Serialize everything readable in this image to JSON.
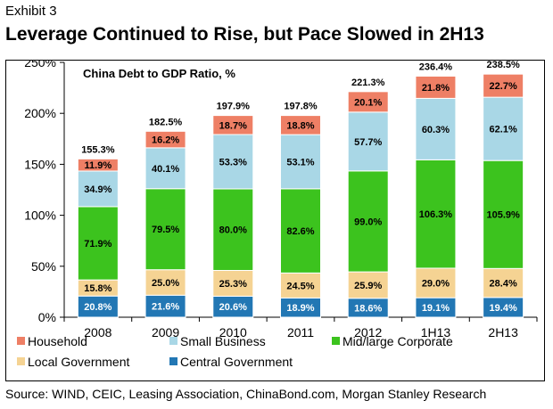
{
  "header": {
    "exhibit": "Exhibit 3",
    "title": "Leverage Continued to Rise, but Pace Slowed in 2H13"
  },
  "source": "Source: WIND, CEIC, Leasing Association, ChinaBond.com, Morgan Stanley Research",
  "chart_data": {
    "type": "bar",
    "stacked": true,
    "title": "China Debt to GDP Ratio, %",
    "xlabel": "",
    "ylabel": "",
    "ylim": [
      0,
      250
    ],
    "yticks": [
      0,
      50,
      100,
      150,
      200,
      250
    ],
    "ytick_labels": [
      "0%",
      "50%",
      "100%",
      "150%",
      "200%",
      "250%"
    ],
    "grid": false,
    "legend_position": "bottom",
    "categories": [
      "2008",
      "2009",
      "2010",
      "2011",
      "2012",
      "1H13",
      "2H13"
    ],
    "series": [
      {
        "name": "Central Government",
        "color": "#2277b4",
        "label_color": "#ffffff",
        "values": [
          20.8,
          21.6,
          20.6,
          18.9,
          18.6,
          19.1,
          19.4
        ],
        "labels": [
          "20.8%",
          "21.6%",
          "20.6%",
          "18.9%",
          "18.6%",
          "19.1%",
          "19.4%"
        ]
      },
      {
        "name": "Local Government",
        "color": "#f5d393",
        "label_color": "#000000",
        "values": [
          15.8,
          25.0,
          25.3,
          24.5,
          25.9,
          29.0,
          28.4
        ],
        "labels": [
          "15.8%",
          "25.0%",
          "25.3%",
          "24.5%",
          "25.9%",
          "29.0%",
          "28.4%"
        ]
      },
      {
        "name": "Mid/large Corporate",
        "color": "#3cc31e",
        "label_color": "#000000",
        "values": [
          71.9,
          79.5,
          80.0,
          82.6,
          99.0,
          106.3,
          105.9
        ],
        "labels": [
          "71.9%",
          "79.5%",
          "80.0%",
          "82.6%",
          "99.0%",
          "106.3%",
          "105.9%"
        ]
      },
      {
        "name": "Small Business",
        "color": "#a9d7e6",
        "label_color": "#000000",
        "values": [
          34.9,
          40.1,
          53.3,
          53.1,
          57.7,
          60.3,
          62.1
        ],
        "labels": [
          "34.9%",
          "40.1%",
          "53.3%",
          "53.1%",
          "57.7%",
          "60.3%",
          "62.1%"
        ]
      },
      {
        "name": "Household",
        "color": "#ee7f65",
        "label_color": "#000000",
        "values": [
          11.9,
          16.2,
          18.7,
          18.8,
          20.1,
          21.8,
          22.7
        ],
        "labels": [
          "11.9%",
          "16.2%",
          "18.7%",
          "18.8%",
          "20.1%",
          "21.8%",
          "22.7%"
        ]
      }
    ],
    "totals": [
      155.3,
      182.5,
      197.9,
      197.8,
      221.3,
      236.4,
      238.5
    ],
    "total_labels": [
      "155.3%",
      "182.5%",
      "197.9%",
      "197.8%",
      "221.3%",
      "236.4%",
      "238.5%"
    ],
    "legend_order": [
      "Household",
      "Small Business",
      "Mid/large Corporate",
      "Local Government",
      "Central Government"
    ]
  }
}
